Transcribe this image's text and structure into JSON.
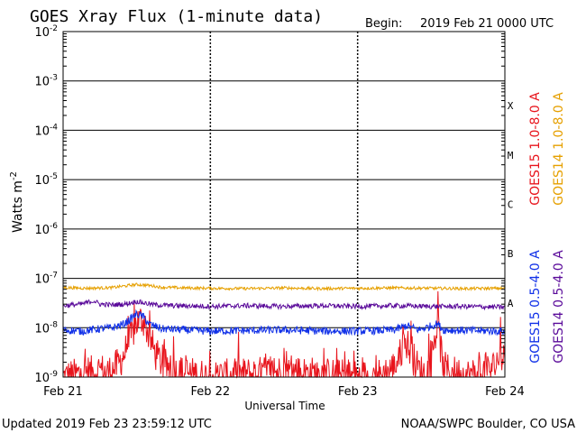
{
  "header": {
    "title": "GOES Xray Flux (1-minute data)",
    "begin_label": "Begin:",
    "begin_value": "2019 Feb 21 0000 UTC"
  },
  "footer": {
    "updated": "Updated 2019 Feb 23 23:59:12 UTC",
    "credit": "NOAA/SWPC Boulder, CO USA"
  },
  "chart_data": {
    "type": "line",
    "title": "GOES Xray Flux (1-minute data)",
    "xlabel": "Universal Time",
    "ylabel": "Watts m",
    "ylabel_sup": "-2",
    "yscale": "log",
    "ylim": [
      1e-09,
      0.01
    ],
    "xlim": [
      0,
      72
    ],
    "x_unit": "hours since 2019 Feb 21 0000 UTC",
    "x_ticks": [
      {
        "x": 0,
        "label": "Feb 21"
      },
      {
        "x": 24,
        "label": "Feb 22"
      },
      {
        "x": 48,
        "label": "Feb 23"
      },
      {
        "x": 72,
        "label": "Feb 24"
      }
    ],
    "y_ticks": [
      {
        "exp": -2,
        "label": "10",
        "sup": "-2"
      },
      {
        "exp": -3,
        "label": "10",
        "sup": "-3"
      },
      {
        "exp": -4,
        "label": "10",
        "sup": "-4"
      },
      {
        "exp": -5,
        "label": "10",
        "sup": "-5"
      },
      {
        "exp": -6,
        "label": "10",
        "sup": "-6"
      },
      {
        "exp": -7,
        "label": "10",
        "sup": "-7"
      },
      {
        "exp": -8,
        "label": "10",
        "sup": "-8"
      },
      {
        "exp": -9,
        "label": "10",
        "sup": "-9"
      }
    ],
    "flare_classes": [
      {
        "label": "X",
        "exp": -3.5
      },
      {
        "label": "M",
        "exp": -4.5
      },
      {
        "label": "C",
        "exp": -5.5
      },
      {
        "label": "B",
        "exp": -6.5
      },
      {
        "label": "A",
        "exp": -7.5
      }
    ],
    "grid": true,
    "legend_position": "right",
    "series": [
      {
        "name": "GOES15 1.0-8.0 A",
        "color": "#e8141c",
        "points": [
          [
            0,
            1e-09
          ],
          [
            2,
            1.1e-09
          ],
          [
            4,
            1.3e-09
          ],
          [
            5,
            1.2e-09
          ],
          [
            6,
            1.5e-09
          ],
          [
            7,
            1.2e-09
          ],
          [
            8,
            1.4e-09
          ],
          [
            9,
            1.8e-09
          ],
          [
            10,
            3e-09
          ],
          [
            11,
            6e-09
          ],
          [
            12,
            1.3e-08
          ],
          [
            13,
            1.5e-08
          ],
          [
            14,
            7e-09
          ],
          [
            15,
            3e-09
          ],
          [
            16,
            2e-09
          ],
          [
            17,
            1.6e-09
          ],
          [
            18,
            1.3e-09
          ],
          [
            20,
            1.2e-09
          ],
          [
            22,
            1.1e-09
          ],
          [
            24,
            1e-09
          ],
          [
            28,
            1.1e-09
          ],
          [
            32,
            1.2e-09
          ],
          [
            36,
            1.3e-09
          ],
          [
            40,
            1.2e-09
          ],
          [
            44,
            1.1e-09
          ],
          [
            48,
            1e-09
          ],
          [
            52,
            1.1e-09
          ],
          [
            54,
            1.6e-09
          ],
          [
            55,
            3e-09
          ],
          [
            56,
            5e-09
          ],
          [
            57,
            2.5e-09
          ],
          [
            58,
            1.4e-09
          ],
          [
            59,
            1.2e-09
          ],
          [
            60,
            2e-09
          ],
          [
            61,
            1.2e-08
          ],
          [
            62,
            1.5e-09
          ],
          [
            64,
            1.2e-09
          ],
          [
            66,
            1.1e-09
          ],
          [
            68,
            1.2e-09
          ],
          [
            70,
            1.5e-09
          ],
          [
            71,
            2.5e-09
          ],
          [
            72,
            3e-09
          ]
        ]
      },
      {
        "name": "GOES14 1.0-8.0 A",
        "color": "#e6a000",
        "points": [
          [
            0,
            6.5e-08
          ],
          [
            4,
            6.3e-08
          ],
          [
            8,
            6.5e-08
          ],
          [
            10,
            7e-08
          ],
          [
            12,
            7.5e-08
          ],
          [
            14,
            7.2e-08
          ],
          [
            16,
            6.6e-08
          ],
          [
            20,
            6.4e-08
          ],
          [
            24,
            6.3e-08
          ],
          [
            30,
            6.2e-08
          ],
          [
            36,
            6.4e-08
          ],
          [
            42,
            6.2e-08
          ],
          [
            48,
            6.3e-08
          ],
          [
            54,
            6.4e-08
          ],
          [
            60,
            6.3e-08
          ],
          [
            66,
            6.2e-08
          ],
          [
            72,
            6.3e-08
          ]
        ]
      },
      {
        "name": "GOES15 0.5-4.0 A",
        "color": "#1030e8",
        "points": [
          [
            0,
            9e-09
          ],
          [
            3,
            8.5e-09
          ],
          [
            6,
            9.5e-09
          ],
          [
            8,
            1e-08
          ],
          [
            10,
            1.2e-08
          ],
          [
            11,
            1.5e-08
          ],
          [
            12,
            1.9e-08
          ],
          [
            13,
            1.7e-08
          ],
          [
            14,
            1.2e-08
          ],
          [
            16,
            9.5e-09
          ],
          [
            20,
            9e-09
          ],
          [
            24,
            8.5e-09
          ],
          [
            30,
            8.8e-09
          ],
          [
            36,
            9e-09
          ],
          [
            42,
            8.6e-09
          ],
          [
            48,
            8.5e-09
          ],
          [
            54,
            9e-09
          ],
          [
            56,
            1.1e-08
          ],
          [
            58,
            9e-09
          ],
          [
            61,
            1.2e-08
          ],
          [
            62,
            9e-09
          ],
          [
            66,
            8.8e-09
          ],
          [
            72,
            8.5e-09
          ]
        ]
      },
      {
        "name": "GOES14 0.5-4.0 A",
        "color": "#5a0a9a",
        "points": [
          [
            0,
            2.8e-08
          ],
          [
            3,
            3e-08
          ],
          [
            5,
            3.5e-08
          ],
          [
            6,
            3e-08
          ],
          [
            8,
            2.9e-08
          ],
          [
            10,
            3e-08
          ],
          [
            12,
            3.4e-08
          ],
          [
            13,
            3.2e-08
          ],
          [
            15,
            2.9e-08
          ],
          [
            18,
            2.8e-08
          ],
          [
            24,
            2.7e-08
          ],
          [
            30,
            2.8e-08
          ],
          [
            36,
            2.7e-08
          ],
          [
            42,
            2.8e-08
          ],
          [
            48,
            2.7e-08
          ],
          [
            54,
            2.8e-08
          ],
          [
            60,
            2.7e-08
          ],
          [
            66,
            2.7e-08
          ],
          [
            72,
            2.6e-08
          ]
        ]
      }
    ]
  }
}
